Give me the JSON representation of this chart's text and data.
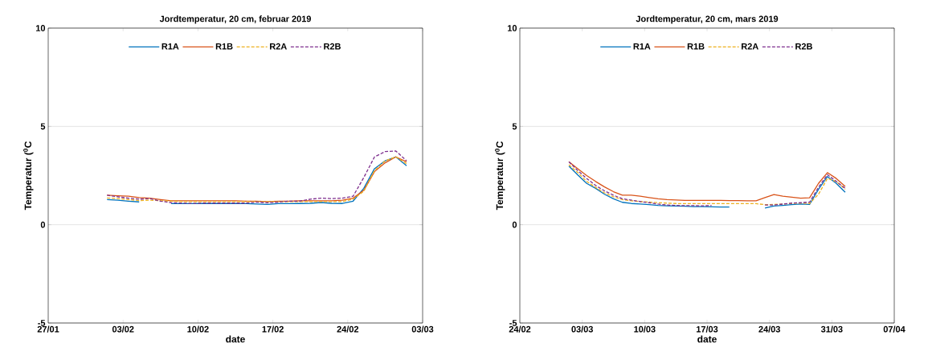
{
  "chart_data": [
    {
      "type": "line",
      "title": "Jordtemperatur, 20 cm, februar 2019",
      "xlabel": "date",
      "ylabel": "Temperatur ($^{0}$C",
      "x": [
        "2019-02-01T12:00",
        "2019-02-02T12:00",
        "2019-02-03T12:00",
        "2019-02-04T12:00",
        "2019-02-05T12:00",
        "2019-02-06T12:00",
        "2019-02-07T12:00",
        "2019-02-08T12:00",
        "2019-02-09T12:00",
        "2019-02-10T12:00",
        "2019-02-11T12:00",
        "2019-02-12T12:00",
        "2019-02-13T12:00",
        "2019-02-14T12:00",
        "2019-02-15T12:00",
        "2019-02-16T12:00",
        "2019-02-17T12:00",
        "2019-02-18T12:00",
        "2019-02-19T12:00",
        "2019-02-20T12:00",
        "2019-02-21T12:00",
        "2019-02-22T12:00",
        "2019-02-23T12:00",
        "2019-02-24T12:00",
        "2019-02-25T12:00",
        "2019-02-26T12:00",
        "2019-02-27T12:00",
        "2019-02-28T12:00",
        "2019-03-01T12:00"
      ],
      "series": [
        {
          "name": "R1A",
          "color": "#0072bd",
          "line_style": "solid",
          "values": [
            1.28,
            1.25,
            1.2,
            1.16,
            null,
            null,
            1.07,
            1.07,
            1.07,
            1.08,
            1.08,
            1.08,
            1.08,
            1.07,
            1.05,
            1.03,
            1.07,
            1.07,
            1.08,
            1.09,
            1.13,
            1.09,
            1.08,
            1.2,
            1.85,
            2.85,
            3.25,
            3.45,
            3.0
          ]
        },
        {
          "name": "R1B",
          "color": "#d95319",
          "line_style": "solid",
          "values": [
            1.5,
            1.47,
            1.45,
            1.38,
            1.35,
            1.28,
            1.22,
            1.22,
            1.22,
            1.22,
            1.22,
            1.22,
            1.22,
            1.2,
            1.2,
            1.18,
            1.2,
            1.2,
            1.22,
            1.22,
            1.22,
            1.22,
            1.25,
            1.35,
            1.75,
            2.7,
            3.15,
            3.45,
            3.2
          ]
        },
        {
          "name": "R2A",
          "color": "#edb120",
          "line_style": "dashed",
          "values": [
            1.36,
            1.33,
            1.28,
            1.23,
            1.25,
            1.22,
            1.2,
            1.18,
            1.18,
            1.18,
            1.18,
            1.18,
            1.18,
            1.18,
            1.18,
            1.18,
            1.18,
            1.18,
            1.18,
            1.18,
            1.18,
            1.18,
            1.18,
            1.3,
            1.7,
            2.75,
            3.25,
            3.45,
            3.1
          ]
        },
        {
          "name": "R2B",
          "color": "#7e2f8e",
          "line_style": "dashed",
          "values": [
            1.5,
            1.42,
            1.35,
            1.3,
            1.33,
            1.2,
            1.12,
            1.1,
            1.08,
            1.1,
            1.1,
            1.1,
            1.1,
            1.1,
            1.15,
            1.12,
            1.15,
            1.2,
            1.2,
            1.3,
            1.35,
            1.33,
            1.35,
            1.45,
            2.4,
            3.45,
            3.72,
            3.75,
            3.25
          ]
        }
      ],
      "xlim": [
        "2019-01-27",
        "2019-03-03"
      ],
      "xticks": [
        {
          "value": "2019-01-27",
          "label": "27/01"
        },
        {
          "value": "2019-02-03",
          "label": "03/02"
        },
        {
          "value": "2019-02-10",
          "label": "10/02"
        },
        {
          "value": "2019-02-17",
          "label": "17/02"
        },
        {
          "value": "2019-02-24",
          "label": "24/02"
        },
        {
          "value": "2019-03-03",
          "label": "03/03"
        }
      ],
      "ylim": [
        -5,
        10
      ],
      "yticks": [
        -5,
        0,
        5,
        10
      ],
      "grid": "y",
      "legend": "top"
    },
    {
      "type": "line",
      "title": "Jordtemperatur, 20 cm, mars 2019",
      "xlabel": "date",
      "ylabel": "Temperatur ($^{0}$C",
      "x": [
        "2019-03-01T12:00",
        "2019-03-02T12:00",
        "2019-03-03T12:00",
        "2019-03-04T12:00",
        "2019-03-05T12:00",
        "2019-03-06T12:00",
        "2019-03-07T12:00",
        "2019-03-08T12:00",
        "2019-03-09T12:00",
        "2019-03-10T12:00",
        "2019-03-11T12:00",
        "2019-03-12T12:00",
        "2019-03-13T12:00",
        "2019-03-14T12:00",
        "2019-03-15T12:00",
        "2019-03-16T12:00",
        "2019-03-17T12:00",
        "2019-03-18T12:00",
        "2019-03-19T12:00",
        "2019-03-20T12:00",
        "2019-03-21T12:00",
        "2019-03-22T12:00",
        "2019-03-23T12:00",
        "2019-03-24T12:00",
        "2019-03-25T12:00",
        "2019-03-26T12:00",
        "2019-03-27T12:00",
        "2019-03-28T12:00",
        "2019-03-29T12:00",
        "2019-03-30T12:00",
        "2019-03-31T12:00",
        "2019-04-01T12:00"
      ],
      "series": [
        {
          "name": "R1A",
          "color": "#0072bd",
          "line_style": "solid",
          "values": [
            2.98,
            2.53,
            2.1,
            1.85,
            1.55,
            1.32,
            1.14,
            1.08,
            1.05,
            1.02,
            0.98,
            0.96,
            0.95,
            0.94,
            0.92,
            0.92,
            0.91,
            0.9,
            0.9,
            null,
            null,
            null,
            0.85,
            0.95,
            0.98,
            1.02,
            1.05,
            1.03,
            1.8,
            2.45,
            2.1,
            1.65
          ]
        },
        {
          "name": "R1B",
          "color": "#d95319",
          "line_style": "solid",
          "values": [
            3.2,
            2.85,
            2.5,
            2.2,
            1.92,
            1.68,
            1.5,
            1.5,
            1.45,
            1.38,
            1.32,
            1.28,
            1.26,
            1.24,
            1.24,
            1.24,
            1.24,
            1.24,
            1.23,
            1.23,
            1.22,
            1.22,
            1.38,
            1.53,
            1.45,
            1.4,
            1.35,
            1.37,
            2.1,
            2.65,
            2.35,
            1.95
          ]
        },
        {
          "name": "R2A",
          "color": "#edb120",
          "line_style": "dashed",
          "values": [
            3.05,
            2.65,
            2.2,
            1.9,
            1.62,
            1.42,
            1.28,
            1.22,
            1.18,
            1.15,
            1.12,
            1.1,
            1.08,
            1.07,
            1.07,
            1.07,
            1.07,
            1.07,
            1.07,
            1.07,
            1.07,
            1.07,
            1.02,
            1.03,
            1.05,
            1.08,
            1.1,
            1.08,
            1.55,
            2.35,
            2.2,
            1.8
          ]
        },
        {
          "name": "R2B",
          "color": "#7e2f8e",
          "line_style": "dashed",
          "values": [
            3.2,
            2.75,
            2.35,
            2.0,
            1.72,
            1.5,
            1.32,
            1.25,
            1.18,
            1.12,
            1.05,
            1.0,
            0.98,
            0.97,
            0.97,
            0.96,
            0.98,
            null,
            null,
            null,
            null,
            null,
            1.0,
            1.0,
            1.05,
            1.1,
            1.12,
            1.15,
            1.9,
            2.55,
            2.2,
            1.85
          ]
        }
      ],
      "xlim": [
        "2019-02-24",
        "2019-04-07"
      ],
      "xticks": [
        {
          "value": "2019-02-24",
          "label": "24/02"
        },
        {
          "value": "2019-03-03",
          "label": "03/03"
        },
        {
          "value": "2019-03-10",
          "label": "10/03"
        },
        {
          "value": "2019-03-17",
          "label": "17/03"
        },
        {
          "value": "2019-03-24",
          "label": "24/03"
        },
        {
          "value": "2019-03-31",
          "label": "31/03"
        },
        {
          "value": "2019-04-07",
          "label": "07/04"
        }
      ],
      "ylim": [
        -5,
        10
      ],
      "yticks": [
        -5,
        0,
        5,
        10
      ],
      "grid": "y",
      "legend": "top"
    }
  ]
}
